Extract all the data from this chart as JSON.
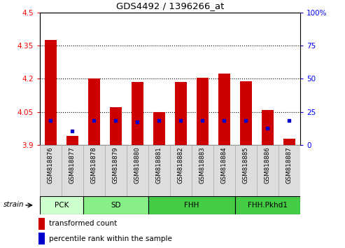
{
  "title": "GDS4492 / 1396266_at",
  "samples": [
    "GSM818876",
    "GSM818877",
    "GSM818878",
    "GSM818879",
    "GSM818880",
    "GSM818881",
    "GSM818882",
    "GSM818883",
    "GSM818884",
    "GSM818885",
    "GSM818886",
    "GSM818887"
  ],
  "red_values": [
    4.375,
    3.94,
    4.2,
    4.07,
    4.185,
    4.05,
    4.185,
    4.205,
    4.225,
    4.19,
    4.06,
    3.93
  ],
  "blue_values": [
    4.01,
    3.965,
    4.01,
    4.01,
    4.005,
    4.01,
    4.01,
    4.01,
    4.01,
    4.01,
    3.975,
    4.01
  ],
  "ylim_left": [
    3.9,
    4.5
  ],
  "ylim_right": [
    0,
    100
  ],
  "yticks_left": [
    3.9,
    4.05,
    4.2,
    4.35,
    4.5
  ],
  "yticks_right": [
    0,
    25,
    50,
    75,
    100
  ],
  "ytick_labels_left": [
    "3.9",
    "4.05",
    "4.2",
    "4.35",
    "4.5"
  ],
  "ytick_labels_right": [
    "0",
    "25",
    "50",
    "75",
    "100%"
  ],
  "grid_values": [
    4.05,
    4.2,
    4.35
  ],
  "bar_color": "#cc0000",
  "dot_color": "#0000cc",
  "bar_width": 0.55,
  "groups": [
    {
      "label": "PCK",
      "start": 0,
      "end": 1,
      "color": "#ccffcc"
    },
    {
      "label": "SD",
      "start": 2,
      "end": 4,
      "color": "#88ee88"
    },
    {
      "label": "FHH",
      "start": 5,
      "end": 8,
      "color": "#44cc44"
    },
    {
      "label": "FHH.Pkhd1",
      "start": 9,
      "end": 11,
      "color": "#44cc44"
    }
  ],
  "legend_items": [
    {
      "label": "transformed count",
      "color": "#cc0000"
    },
    {
      "label": "percentile rank within the sample",
      "color": "#0000cc"
    }
  ],
  "strain_label": "strain",
  "background_color": "#ffffff"
}
